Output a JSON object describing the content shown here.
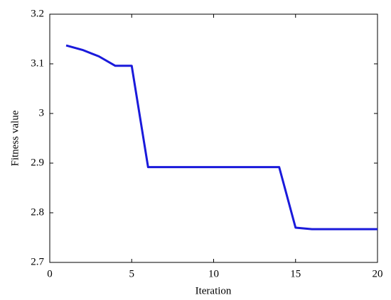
{
  "chart_data": {
    "type": "line",
    "x_label": "Iteration",
    "y_label": "Fitness value",
    "x": [
      1,
      2,
      3,
      4,
      5,
      6,
      7,
      8,
      9,
      10,
      11,
      12,
      13,
      14,
      15,
      16,
      17,
      18,
      19,
      20
    ],
    "series": [
      {
        "color": "#1a1adb",
        "values": [
          3.137,
          3.128,
          3.115,
          3.096,
          3.096,
          2.892,
          2.892,
          2.892,
          2.892,
          2.892,
          2.892,
          2.892,
          2.892,
          2.892,
          2.77,
          2.767,
          2.767,
          2.767,
          2.767,
          2.767
        ]
      }
    ],
    "xlim": [
      0,
      20
    ],
    "xticks": [
      0,
      5,
      10,
      15,
      20
    ],
    "ylim": [
      2.7,
      3.2
    ],
    "yticks": [
      2.7,
      2.8,
      2.9,
      3,
      3.1,
      3.2
    ]
  }
}
